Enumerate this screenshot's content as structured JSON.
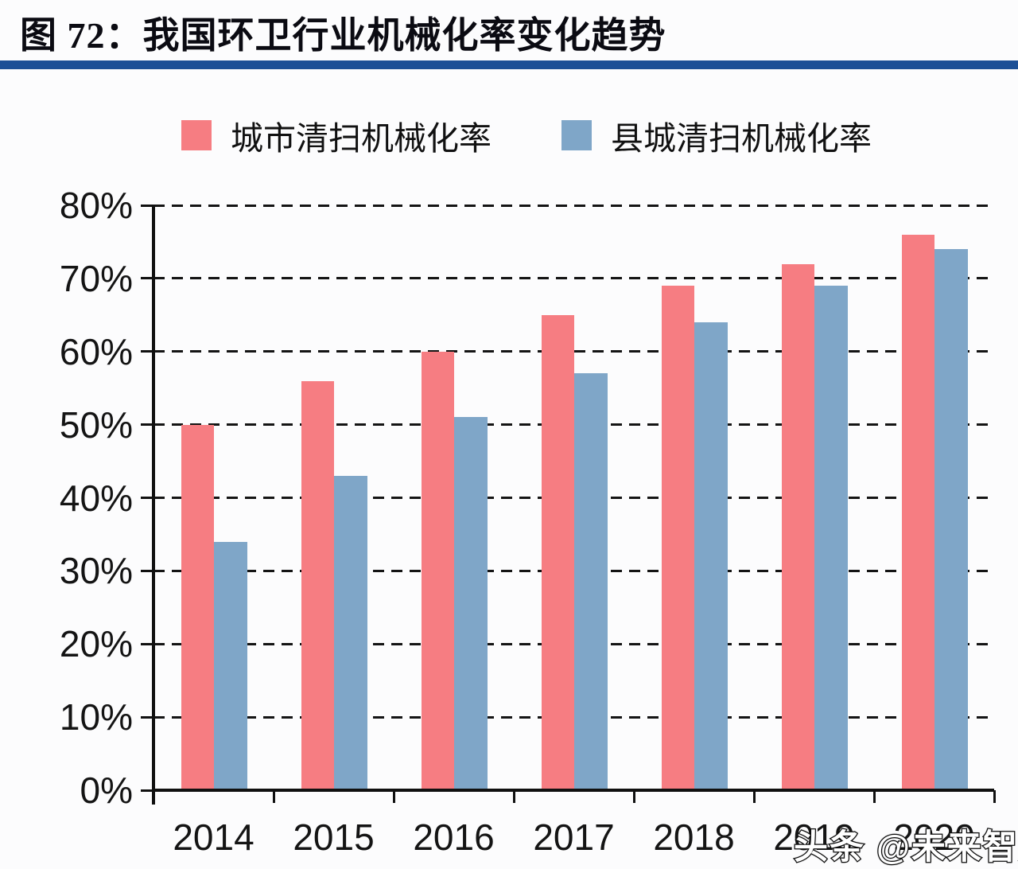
{
  "page": {
    "title": "图 72：我国环卫行业机械化率变化趋势",
    "accent_color": "#1b4f96",
    "watermark": "头条 @未来智库"
  },
  "chart_data": {
    "type": "bar",
    "title": "我国环卫行业机械化率变化趋势",
    "categories": [
      "2014",
      "2015",
      "2016",
      "2017",
      "2018",
      "2019",
      "2020"
    ],
    "series": [
      {
        "name": "城市清扫机械化率",
        "color": "#f67d82",
        "values": [
          50,
          56,
          60,
          65,
          69,
          72,
          76
        ]
      },
      {
        "name": "县城清扫机械化率",
        "color": "#7fa6c8",
        "values": [
          34,
          43,
          51,
          57,
          64,
          69,
          74
        ]
      }
    ],
    "xlabel": "",
    "ylabel": "",
    "ylim": [
      0,
      80
    ],
    "ytick_step": 10,
    "ytick_suffix": "%",
    "grid": "horizontal-dashed",
    "legend_position": "top"
  }
}
